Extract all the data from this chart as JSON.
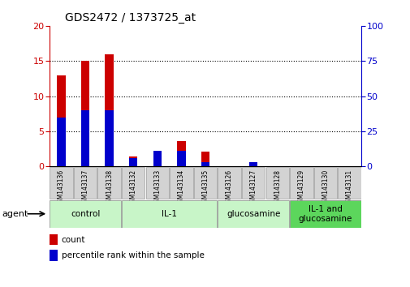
{
  "title": "GDS2472 / 1373725_at",
  "samples": [
    "GSM143136",
    "GSM143137",
    "GSM143138",
    "GSM143132",
    "GSM143133",
    "GSM143134",
    "GSM143135",
    "GSM143126",
    "GSM143127",
    "GSM143128",
    "GSM143129",
    "GSM143130",
    "GSM143131"
  ],
  "count": [
    13.0,
    15.0,
    16.0,
    1.4,
    2.2,
    3.6,
    2.1,
    0.0,
    0.0,
    0.0,
    0.0,
    0.0,
    0.0
  ],
  "percentile": [
    35,
    40,
    40,
    6,
    11,
    11,
    3,
    0,
    3,
    0,
    0,
    0,
    0
  ],
  "groups": [
    {
      "label": "control",
      "start": 0,
      "end": 3
    },
    {
      "label": "IL-1",
      "start": 3,
      "end": 7
    },
    {
      "label": "glucosamine",
      "start": 7,
      "end": 10
    },
    {
      "label": "IL-1 and\nglucosamine",
      "start": 10,
      "end": 13
    }
  ],
  "group_colors": [
    "#c8f5c8",
    "#c8f5c8",
    "#c8f5c8",
    "#5cd65c"
  ],
  "ylim_left": [
    0,
    20
  ],
  "ylim_right": [
    0,
    100
  ],
  "yticks_left": [
    0,
    5,
    10,
    15,
    20
  ],
  "yticks_right": [
    0,
    25,
    50,
    75,
    100
  ],
  "bar_color_count": "#cc0000",
  "bar_color_percentile": "#0000cc",
  "background_color": "#ffffff"
}
